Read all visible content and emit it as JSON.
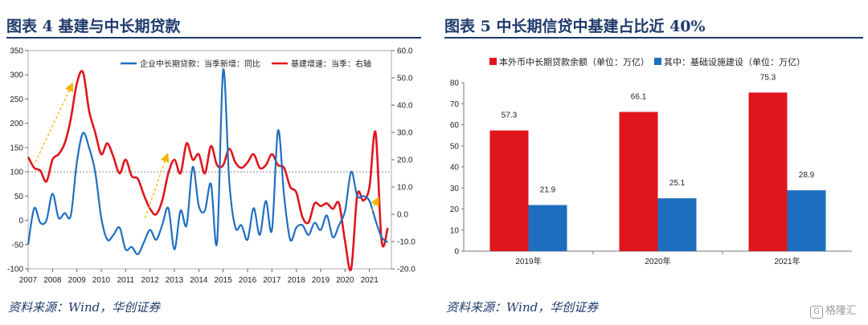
{
  "left": {
    "fig_title": "图表 4   基建与中长期贷款",
    "source": "资料来源：Wind，华创证券",
    "chart_data": {
      "type": "line",
      "series": [
        {
          "name": "企业中长期贷款：当季新增：同比",
          "axis": "left",
          "color": "#1f6fc0",
          "points": [
            [
              2007.0,
              -50
            ],
            [
              2007.25,
              25
            ],
            [
              2007.5,
              -5
            ],
            [
              2007.75,
              0
            ],
            [
              2008.0,
              55
            ],
            [
              2008.25,
              5
            ],
            [
              2008.5,
              15
            ],
            [
              2008.75,
              10
            ],
            [
              2009.0,
              120
            ],
            [
              2009.25,
              180
            ],
            [
              2009.5,
              150
            ],
            [
              2009.75,
              100
            ],
            [
              2010.0,
              5
            ],
            [
              2010.25,
              -40
            ],
            [
              2010.5,
              -30
            ],
            [
              2010.75,
              -15
            ],
            [
              2011.0,
              -60
            ],
            [
              2011.25,
              -55
            ],
            [
              2011.5,
              -70
            ],
            [
              2011.75,
              -45
            ],
            [
              2012.0,
              -20
            ],
            [
              2012.25,
              -40
            ],
            [
              2012.5,
              -10
            ],
            [
              2012.75,
              25
            ],
            [
              2013.0,
              -60
            ],
            [
              2013.25,
              20
            ],
            [
              2013.5,
              -10
            ],
            [
              2013.75,
              110
            ],
            [
              2014.0,
              30
            ],
            [
              2014.25,
              20
            ],
            [
              2014.5,
              75
            ],
            [
              2014.75,
              -45
            ],
            [
              2015.0,
              310
            ],
            [
              2015.25,
              80
            ],
            [
              2015.5,
              -15
            ],
            [
              2015.75,
              -10
            ],
            [
              2016.0,
              -40
            ],
            [
              2016.25,
              25
            ],
            [
              2016.5,
              -30
            ],
            [
              2016.75,
              40
            ],
            [
              2017.0,
              -20
            ],
            [
              2017.25,
              185
            ],
            [
              2017.5,
              50
            ],
            [
              2017.75,
              -40
            ],
            [
              2018.0,
              -15
            ],
            [
              2018.25,
              -10
            ],
            [
              2018.5,
              -30
            ],
            [
              2018.75,
              -5
            ],
            [
              2019.0,
              -20
            ],
            [
              2019.25,
              10
            ],
            [
              2019.5,
              -35
            ],
            [
              2019.75,
              -10
            ],
            [
              2020.0,
              20
            ],
            [
              2020.25,
              100
            ],
            [
              2020.5,
              50
            ],
            [
              2020.75,
              50
            ],
            [
              2021.0,
              40
            ],
            [
              2021.25,
              0
            ],
            [
              2021.5,
              -35
            ],
            [
              2021.75,
              -45
            ]
          ]
        },
        {
          "name": "基建增速：当季：右轴",
          "axis": "right",
          "color": "#e0161d",
          "points": [
            [
              2007.0,
              21
            ],
            [
              2007.25,
              17
            ],
            [
              2007.5,
              16
            ],
            [
              2007.75,
              12
            ],
            [
              2008.0,
              20
            ],
            [
              2008.25,
              22
            ],
            [
              2008.5,
              26
            ],
            [
              2008.75,
              35
            ],
            [
              2009.0,
              48
            ],
            [
              2009.25,
              52
            ],
            [
              2009.5,
              38
            ],
            [
              2009.75,
              30
            ],
            [
              2010.0,
              22
            ],
            [
              2010.25,
              26
            ],
            [
              2010.5,
              21
            ],
            [
              2010.75,
              15
            ],
            [
              2011.0,
              20
            ],
            [
              2011.25,
              14
            ],
            [
              2011.5,
              13
            ],
            [
              2011.75,
              7
            ],
            [
              2012.0,
              2
            ],
            [
              2012.25,
              0
            ],
            [
              2012.5,
              5
            ],
            [
              2012.75,
              15
            ],
            [
              2013.0,
              20
            ],
            [
              2013.25,
              15
            ],
            [
              2013.5,
              26
            ],
            [
              2013.75,
              20
            ],
            [
              2014.0,
              22
            ],
            [
              2014.25,
              15
            ],
            [
              2014.5,
              25
            ],
            [
              2014.75,
              18
            ],
            [
              2015.0,
              18
            ],
            [
              2015.25,
              24
            ],
            [
              2015.5,
              19
            ],
            [
              2015.75,
              17
            ],
            [
              2016.0,
              19
            ],
            [
              2016.25,
              22
            ],
            [
              2016.5,
              17
            ],
            [
              2016.75,
              18
            ],
            [
              2017.0,
              22
            ],
            [
              2017.25,
              18
            ],
            [
              2017.5,
              17
            ],
            [
              2017.75,
              10
            ],
            [
              2018.0,
              8
            ],
            [
              2018.25,
              -1
            ],
            [
              2018.5,
              -3
            ],
            [
              2018.75,
              4
            ],
            [
              2019.0,
              3
            ],
            [
              2019.25,
              4
            ],
            [
              2019.5,
              2
            ],
            [
              2019.75,
              4
            ],
            [
              2020.0,
              -10
            ],
            [
              2020.25,
              -20
            ],
            [
              2020.5,
              7
            ],
            [
              2020.75,
              5
            ],
            [
              2021.0,
              10
            ],
            [
              2021.25,
              30
            ],
            [
              2021.5,
              -10
            ],
            [
              2021.75,
              -5
            ]
          ]
        }
      ],
      "x_ticks": [
        "2007",
        "2008",
        "2009",
        "2010",
        "2011",
        "2012",
        "2013",
        "2014",
        "2015",
        "2016",
        "2017",
        "2018",
        "2019",
        "2020",
        "2021"
      ],
      "x_range": [
        2007,
        2021.9
      ],
      "y_left": {
        "min": -100,
        "max": 350,
        "ticks": [
          "-100",
          "-50",
          "0",
          "50",
          "100",
          "150",
          "200",
          "250",
          "300",
          "350"
        ]
      },
      "y_right": {
        "min": -20,
        "max": 60,
        "ticks": [
          "-20.0",
          "-10.0",
          "0.0",
          "10.0",
          "20.0",
          "30.0",
          "40.0",
          "50.0",
          "60.0"
        ]
      },
      "reference_line": {
        "axis": "left",
        "value": 100,
        "style": "dotted"
      },
      "legend_position": "top",
      "annotations": {
        "type": "dashed-arrows",
        "color": "#f5b400",
        "arrows": [
          {
            "from": [
              2007.3,
              120
            ],
            "to": [
              2008.8,
              280
            ]
          },
          {
            "from": [
              2011.8,
              5
            ],
            "to": [
              2012.7,
              135
            ]
          },
          {
            "from": [
              2021.1,
              20
            ],
            "to": [
              2021.35,
              45
            ]
          }
        ]
      }
    }
  },
  "right": {
    "fig_title": "图表 5   中长期信贷中基建占比近 40%",
    "source": "资料来源：Wind，华创证券",
    "watermark": "格隆汇",
    "chart_data": {
      "type": "bar",
      "categories": [
        "2019年",
        "2020年",
        "2021年"
      ],
      "series": [
        {
          "name": "本外币中长期贷款余额（单位：万亿）",
          "color": "#e0161d",
          "values": [
            57.3,
            66.1,
            75.3
          ]
        },
        {
          "name": "其中：基础设施建设（单位：万亿）",
          "color": "#1f6fc0",
          "values": [
            21.9,
            25.1,
            28.9
          ]
        }
      ],
      "ylim": [
        0,
        80
      ],
      "y_ticks": [
        "0",
        "10",
        "20",
        "30",
        "40",
        "50",
        "60",
        "70",
        "80"
      ],
      "data_labels": true,
      "legend_position": "top"
    }
  }
}
